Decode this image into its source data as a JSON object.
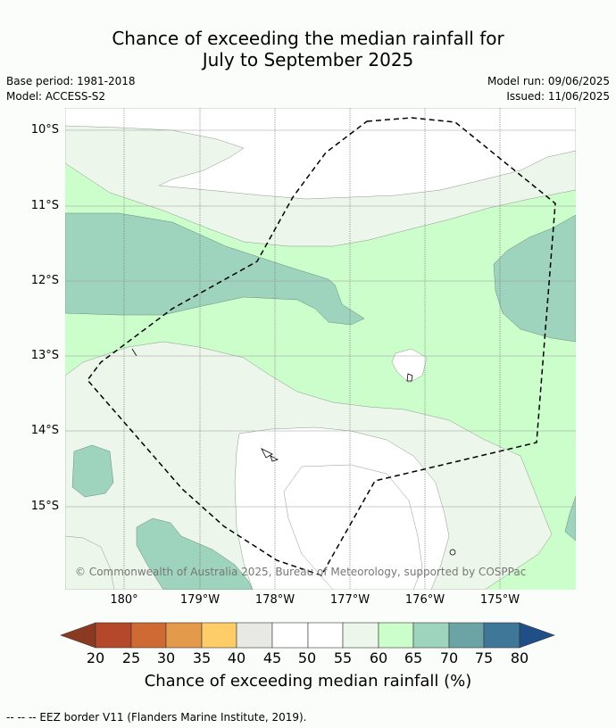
{
  "title_line1": "Chance of exceeding the median rainfall for",
  "title_line2": "July to September 2025",
  "info": {
    "base_period": "Base period: 1981-2018",
    "model": "Model: ACCESS-S2",
    "model_run": "Model run: 09/06/2025",
    "issued": "Issued: 11/06/2025"
  },
  "axes": {
    "latitudes": [
      "10°S",
      "11°S",
      "12°S",
      "13°S",
      "14°S",
      "15°S"
    ],
    "longitudes": [
      "180°",
      "179°W",
      "178°W",
      "177°W",
      "176°W",
      "175°W"
    ]
  },
  "copyright": "© Commonwealth of Australia 2025, Bureau of Meteorology, supported by COSPPac",
  "colorbar": {
    "ticks": [
      "20",
      "25",
      "30",
      "35",
      "40",
      "45",
      "50",
      "55",
      "60",
      "65",
      "70",
      "75",
      "80"
    ],
    "colors": [
      "#b5482a",
      "#d06a34",
      "#e39a4b",
      "#fdcd6a",
      "#e8e8e5",
      "#ffffff",
      "#ffffff",
      "#ecf6ea",
      "#ccfecb",
      "#9ed3bd",
      "#6ca4a6",
      "#3f7798"
    ],
    "under_color": "#8b3a22",
    "over_color": "#1f4f86",
    "label": "Chance of exceeding median rainfall (%)"
  },
  "footnote": "--  --  -- EEZ border V11 (Flanders Marine Institute, 2019)."
}
